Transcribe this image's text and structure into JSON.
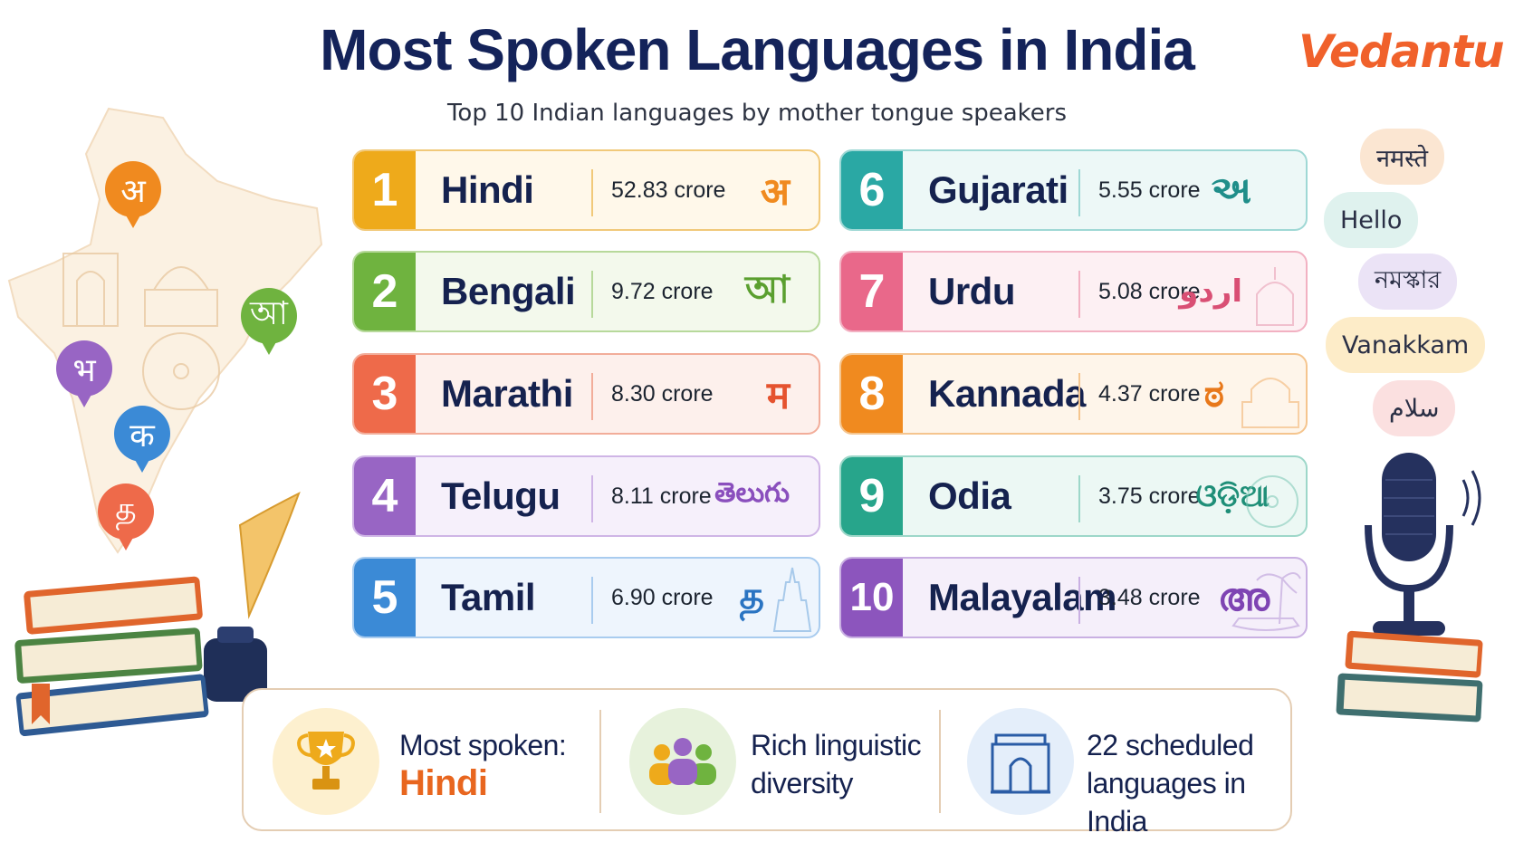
{
  "header": {
    "title": "Most Spoken Languages in India",
    "subtitle": "Top 10 Indian languages by mother tongue speakers",
    "brand": "Vedantu"
  },
  "languages": [
    {
      "rank": "1",
      "name": "Hindi",
      "speakers": "52.83 crore",
      "script": "अ",
      "color": "#eeaa1b",
      "tint": "#fff8ea",
      "border": "#f1c97a"
    },
    {
      "rank": "2",
      "name": "Bengali",
      "speakers": "9.72 crore",
      "script": "আ",
      "color": "#6fb33f",
      "tint": "#f3f9ec",
      "border": "#b7d99b"
    },
    {
      "rank": "3",
      "name": "Marathi",
      "speakers": "8.30 crore",
      "script": "म",
      "color": "#ee6a4a",
      "tint": "#fdf0ec",
      "border": "#f2ad9a"
    },
    {
      "rank": "4",
      "name": "Telugu",
      "speakers": "8.11 crore",
      "script": "తెలుగు",
      "color": "#9865c4",
      "tint": "#f6f0fb",
      "border": "#cfb5e6"
    },
    {
      "rank": "5",
      "name": "Tamil",
      "speakers": "6.90 crore",
      "script": "த",
      "color": "#3b8ad6",
      "tint": "#eef5fd",
      "border": "#a9ccef"
    },
    {
      "rank": "6",
      "name": "Gujarati",
      "speakers": "5.55 crore",
      "script": "અ",
      "color": "#2aa8a4",
      "tint": "#edf8f7",
      "border": "#9fd8d5"
    },
    {
      "rank": "7",
      "name": "Urdu",
      "speakers": "5.08 crore",
      "script": "اردو",
      "color": "#e9688a",
      "tint": "#fdf0f3",
      "border": "#f2b1c2"
    },
    {
      "rank": "8",
      "name": "Kannada",
      "speakers": "4.37 crore",
      "script": "ಠ",
      "color": "#f08a1f",
      "tint": "#fef5ea",
      "border": "#f5c58e"
    },
    {
      "rank": "9",
      "name": "Odia",
      "speakers": "3.75 crore",
      "script": "ଓଡ଼ିଆ",
      "color": "#27a58b",
      "tint": "#ecf8f4",
      "border": "#9dd7c9"
    },
    {
      "rank": "10",
      "name": "Malayalam",
      "speakers": "3.48 crore",
      "script": "അ",
      "color": "#8c55bd",
      "tint": "#f5effa",
      "border": "#c9b0e2"
    }
  ],
  "footer": {
    "most_spoken_label": "Most spoken:",
    "most_spoken_value": "Hindi",
    "diversity_line1": "Rich linguistic",
    "diversity_line2": "diversity",
    "scheduled_line1": "22 scheduled",
    "scheduled_line2": "languages in India"
  },
  "map_pins": [
    {
      "glyph": "अ",
      "color": "#f08a1f"
    },
    {
      "glyph": "আ",
      "color": "#6fb33f"
    },
    {
      "glyph": "भ",
      "color": "#9865c4"
    },
    {
      "glyph": "क",
      "color": "#3b8ad6"
    },
    {
      "glyph": "த",
      "color": "#ee6a4a"
    }
  ],
  "greetings": [
    {
      "text": "नमस्ते",
      "color": "#fbe6d2"
    },
    {
      "text": "Hello",
      "color": "#dff2ee"
    },
    {
      "text": "নমস্কার",
      "color": "#ebe3f6"
    },
    {
      "text": "Vanakkam",
      "color": "#fdecc8"
    },
    {
      "text": "سلام",
      "color": "#fbe0e0"
    }
  ]
}
